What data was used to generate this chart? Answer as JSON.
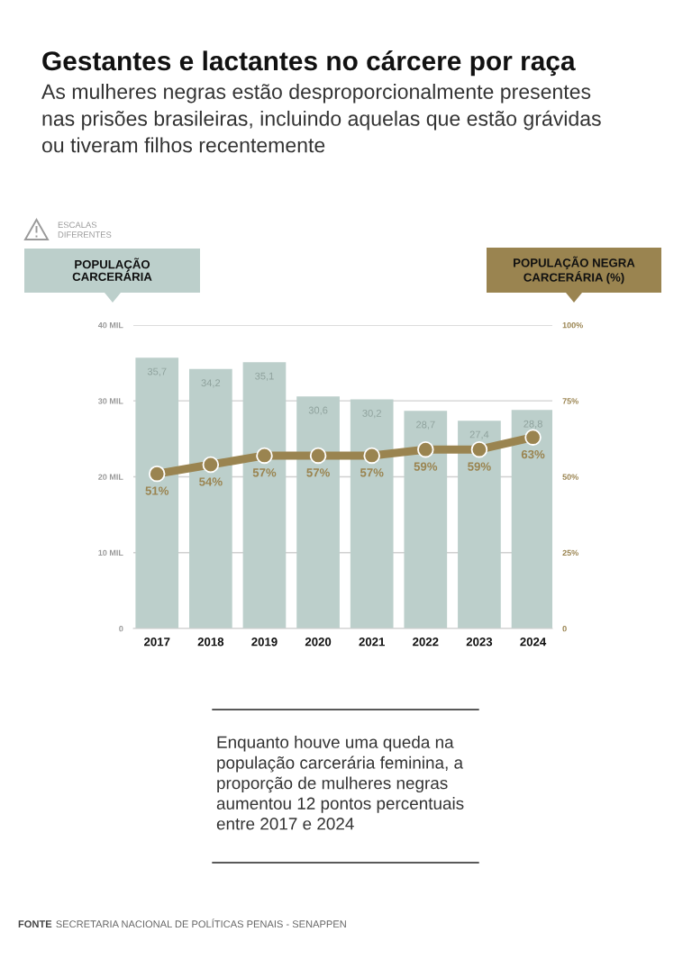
{
  "chart_data": {
    "type": "bar",
    "title": "Gestantes e lactantes no cárcere por raça",
    "subtitle": "As mulheres negras estão desproporcionalmente presentes\nnas prisões brasileiras, incluindo aquelas que estão grávidas\nou tiveram filhos recentemente",
    "ylabel": "POPULAÇÃO\nCARCERÁRIA",
    "y2label": "POPULAÇÃO NEGRA\nCARCERÁRIA (%)",
    "annotations": [
      "ESCALAS\nDIFERENTES",
      "Enquanto houve uma queda na\npopulação carcerária feminina, a\nproporção de mulheres negras\naumentou 12 pontos percentuais\nentre 2017 e 2024",
      "FONTE",
      "SECRETARIA NACIONAL DE POLÍTICAS PENAIS - SENAPPEN"
    ],
    "categories": [
      "2017",
      "2018",
      "2019",
      "2020",
      "2021",
      "2022",
      "2023",
      "2024"
    ],
    "series": [
      {
        "color": "#bccfcb",
        "values": [
          35.7,
          34.2,
          35.1,
          30.6,
          30.2,
          28.7,
          27.4,
          28.8
        ],
        "value_labels": [
          "35,7",
          "34,2",
          "35,1",
          "30,6",
          "30,2",
          "28,7",
          "27,4",
          "28,8"
        ]
      },
      {
        "type": "line",
        "axis": "y2",
        "color": "#9a8450",
        "values": [
          51,
          54,
          57,
          57,
          57,
          59,
          59,
          63
        ],
        "value_labels": [
          "51%",
          "54%",
          "57%",
          "57%",
          "57%",
          "59%",
          "59%",
          "63%"
        ]
      }
    ],
    "ylim": [
      0,
      40
    ],
    "yticks": [
      0,
      {
        "value": 10,
        "label": "10 MIL"
      },
      {
        "value": 20,
        "label": "20 MIL"
      },
      {
        "value": 30,
        "label": "30 MIL"
      },
      {
        "value": 40,
        "label": "40 MIL"
      }
    ],
    "y2lim": [
      0,
      100
    ],
    "y2ticks": [
      0,
      {
        "value": 25,
        "label": "25%"
      },
      {
        "value": 50,
        "label": "50%"
      },
      {
        "value": 75,
        "label": "75%"
      },
      {
        "value": 100,
        "label": "100%"
      }
    ],
    "grid": "y",
    "marker": "circle",
    "line_style": "solid"
  }
}
